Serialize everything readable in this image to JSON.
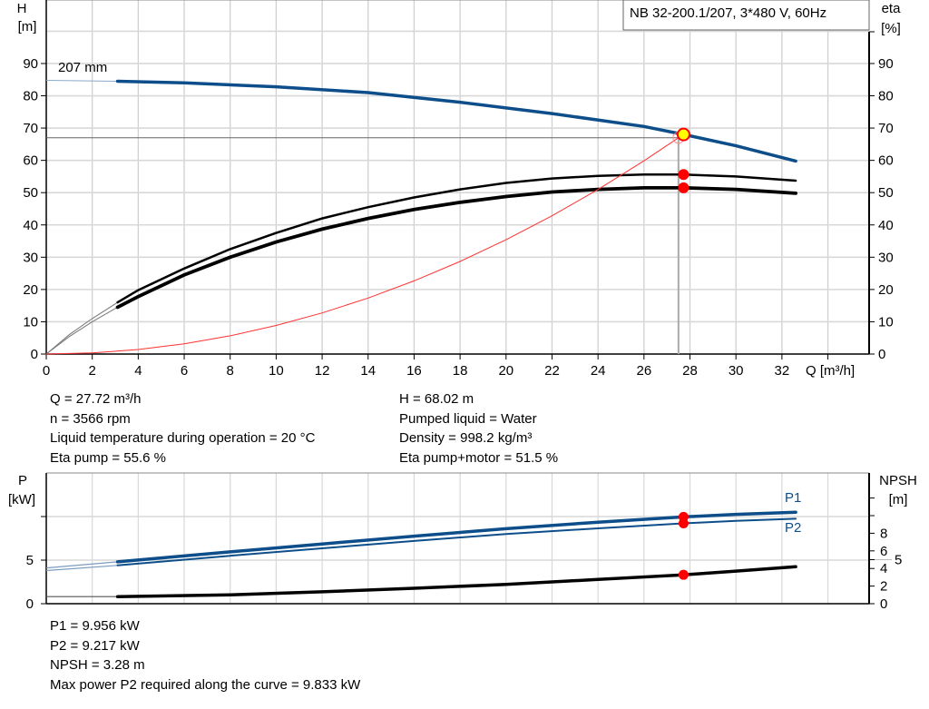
{
  "title_box": "NB 32-200.1/207, 3*480 V, 60Hz",
  "impeller_label": "207 mm",
  "colors": {
    "head": "#0d4e8a",
    "eta": "#000000",
    "system": "#ff3030",
    "duty_point": "#ffff00",
    "marker": "#ff0000",
    "power": "#0d4e8a",
    "npsh": "#000000"
  },
  "chart_data": [
    {
      "type": "line",
      "title": "",
      "xlabel": "Q [m³/h]",
      "ylabel": "H\n[m]",
      "ylabel_lines": [
        "H",
        "[m]"
      ],
      "y2label_lines": [
        "eta",
        "[%]"
      ],
      "xlim": [
        0,
        35.8
      ],
      "ylim": [
        0,
        110
      ],
      "y2lim": [
        0,
        110
      ],
      "x_ticks": [
        0,
        2,
        4,
        6,
        8,
        10,
        12,
        14,
        16,
        18,
        20,
        22,
        24,
        26,
        28,
        30,
        32
      ],
      "y_ticks": [
        0,
        10,
        20,
        30,
        40,
        50,
        60,
        70,
        80,
        90
      ],
      "grid": true,
      "series": [
        {
          "name": "207 mm",
          "axis": "H",
          "color": "#0d4e8a",
          "extrapolated": {
            "x": [
              0,
              3.1
            ],
            "y": [
              84.8,
              84.5
            ]
          },
          "x": [
            3.1,
            6,
            10,
            14,
            18,
            22,
            26,
            27.72,
            30,
            32.6
          ],
          "y": [
            84.5,
            84.0,
            82.8,
            81.0,
            78.0,
            74.5,
            70.5,
            68.02,
            64.5,
            59.8
          ]
        },
        {
          "axis": "eta",
          "color": "#000000",
          "role": "eta pump",
          "extrapolated": {
            "x": [
              0,
              1,
              2,
              3.1
            ],
            "y": [
              0,
              6,
              11,
              16
            ]
          },
          "x": [
            3.1,
            4,
            6,
            8,
            10,
            12,
            14,
            16,
            18,
            20,
            22,
            24,
            26,
            27.72,
            30,
            32.6
          ],
          "y": [
            16,
            19.8,
            26.5,
            32.5,
            37.5,
            42,
            45.5,
            48.5,
            51,
            53,
            54.4,
            55.2,
            55.6,
            55.6,
            55,
            53.7
          ]
        },
        {
          "axis": "eta",
          "color": "#000000",
          "role": "eta pump+motor",
          "extrapolated": {
            "x": [
              0,
              1,
              2,
              3.1
            ],
            "y": [
              0,
              5.4,
              10,
              14.5
            ]
          },
          "x": [
            3.1,
            4,
            6,
            8,
            10,
            12,
            14,
            16,
            18,
            20,
            22,
            24,
            26,
            27.72,
            30,
            32.6
          ],
          "y": [
            14.5,
            17.8,
            24.5,
            30,
            34.7,
            38.7,
            42,
            44.8,
            47,
            48.8,
            50.2,
            51,
            51.5,
            51.5,
            51,
            49.8
          ]
        },
        {
          "axis": "H",
          "color": "#ff3030",
          "role": "system curve",
          "x": [
            0,
            2,
            4,
            6,
            8,
            10,
            12,
            14,
            16,
            18,
            20,
            22,
            24,
            26,
            27.72
          ],
          "y": [
            0,
            0.35,
            1.42,
            3.19,
            5.66,
            8.85,
            12.75,
            17.35,
            22.66,
            28.68,
            35.41,
            42.84,
            50.98,
            59.84,
            68.02
          ]
        }
      ],
      "requested_point": {
        "x": 27.5,
        "y": 67
      },
      "duty_point": {
        "x": 27.72,
        "H": 68.02,
        "eta_pump": 55.6,
        "eta_pump_motor": 51.5
      }
    },
    {
      "type": "line",
      "title": "",
      "ylabel_lines": [
        "P",
        "[kW]"
      ],
      "y2label_lines": [
        "NPSH",
        "[m]"
      ],
      "xlim": [
        0,
        35.8
      ],
      "ylim": [
        0,
        15
      ],
      "y_ticks": [
        0,
        5
      ],
      "y2_ticks_labeled": [
        0,
        2,
        4,
        5,
        6,
        8
      ],
      "y2_ticks_unlabeled": [
        10,
        12
      ],
      "grid": true,
      "series": [
        {
          "name": "P1",
          "axis": "P",
          "color": "#0d4e8a",
          "extrapolated": {
            "x": [
              0,
              3.1
            ],
            "y": [
              4.1,
              4.8
            ]
          },
          "x": [
            3.1,
            8,
            12,
            16,
            20,
            24,
            27.72,
            30,
            32.6
          ],
          "y": [
            4.8,
            5.95,
            6.85,
            7.75,
            8.6,
            9.35,
            9.956,
            10.25,
            10.5
          ]
        },
        {
          "name": "P2",
          "axis": "P",
          "color": "#0d4e8a",
          "extrapolated": {
            "x": [
              0,
              3.1
            ],
            "y": [
              3.8,
              4.4
            ]
          },
          "x": [
            3.1,
            8,
            12,
            16,
            20,
            24,
            27.72,
            30,
            32.6
          ],
          "y": [
            4.4,
            5.5,
            6.35,
            7.2,
            8.0,
            8.65,
            9.217,
            9.5,
            9.75
          ]
        },
        {
          "axis": "NPSH",
          "color": "#000000",
          "role": "NPSH",
          "extrapolated": {
            "x": [
              0,
              3.1
            ],
            "y": [
              0.8,
              0.8
            ]
          },
          "x": [
            3.1,
            8,
            12,
            16,
            20,
            24,
            27.72,
            30,
            32.6
          ],
          "y": [
            0.8,
            1.0,
            1.35,
            1.75,
            2.2,
            2.75,
            3.28,
            3.7,
            4.2
          ]
        }
      ],
      "duty_point": {
        "x": 27.72,
        "P1": 9.956,
        "P2": 9.217,
        "NPSH": 3.28
      }
    }
  ],
  "info_top": {
    "left": [
      "Q = 27.72 m³/h",
      "n = 3566 rpm",
      "Liquid temperature during operation = 20 °C",
      "Eta pump = 55.6 %"
    ],
    "right": [
      "H = 68.02 m",
      "Pumped liquid = Water",
      "Density = 998.2 kg/m³",
      "Eta pump+motor = 51.5 %"
    ]
  },
  "info_bottom": [
    "P1 = 9.956 kW",
    "P2 = 9.217 kW",
    "NPSH = 3.28 m",
    "Max power P2 required along the curve = 9.833 kW"
  ]
}
